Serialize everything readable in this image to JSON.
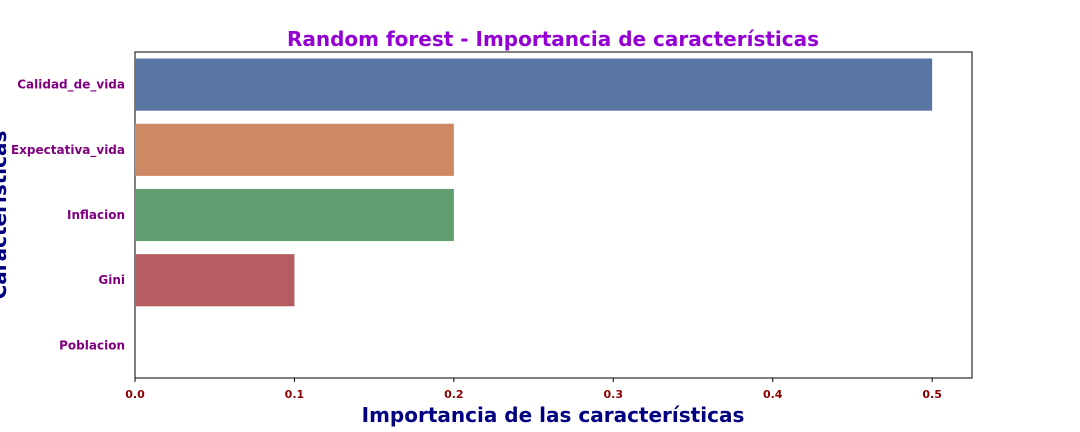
{
  "chart_data": {
    "type": "bar",
    "orientation": "horizontal",
    "title": "Random forest - Importancia de características",
    "xlabel": "Importancia de las características",
    "ylabel": "Características",
    "categories": [
      "Calidad_de_vida",
      "Expectativa_vida",
      "Inflacion",
      "Gini",
      "Poblacion"
    ],
    "values": [
      0.5,
      0.2,
      0.2,
      0.1,
      0.0
    ],
    "xlim": [
      0,
      0.525
    ],
    "xticks": [
      "0.0",
      "0.1",
      "0.2",
      "0.3",
      "0.4",
      "0.5"
    ],
    "grid": false,
    "legend": "none",
    "colors": {
      "bars": [
        "#5975a4",
        "#cc8963",
        "#5f9e6e",
        "#b55d60",
        "#857aab"
      ],
      "title": "#9400d3",
      "xlabel": "#000080",
      "ylabel": "#000080",
      "ytick": "#800080",
      "xtick": "#8b0000",
      "frame": "#000000"
    }
  }
}
